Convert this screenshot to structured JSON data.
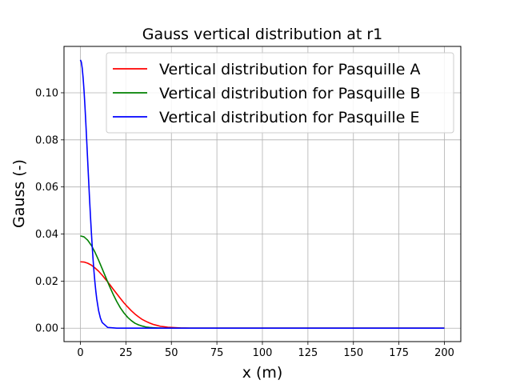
{
  "chart_data": {
    "type": "line",
    "title": "Gauss vertical distribution at r1",
    "xlabel": "x (m)",
    "ylabel": "Gauss (-)",
    "xlim": [
      -9,
      209
    ],
    "ylim": [
      -0.0057,
      0.1197
    ],
    "xticks": [
      0,
      25,
      50,
      75,
      100,
      125,
      150,
      175,
      200
    ],
    "yticks": [
      0.0,
      0.02,
      0.04,
      0.06,
      0.08,
      0.1
    ],
    "xtick_labels": [
      "0",
      "25",
      "50",
      "75",
      "100",
      "125",
      "150",
      "175",
      "200"
    ],
    "ytick_labels": [
      "0.00",
      "0.02",
      "0.04",
      "0.06",
      "0.08",
      "0.10"
    ],
    "grid": true,
    "legend_position": "top-right",
    "series": [
      {
        "name": "Vertical distribution for Pasquille A",
        "color": "#ff0000",
        "x": [
          0,
          2,
          4,
          6,
          8,
          10,
          12,
          14,
          16,
          18,
          20,
          22,
          24,
          26,
          28,
          30,
          32,
          34,
          36,
          38,
          40,
          42,
          44,
          46,
          48,
          50,
          55,
          60,
          70,
          80,
          100,
          125,
          150,
          175,
          200
        ],
        "y": [
          0.0282,
          0.0281,
          0.0276,
          0.0268,
          0.0256,
          0.0242,
          0.0225,
          0.0206,
          0.0187,
          0.0166,
          0.0146,
          0.0126,
          0.0107,
          0.009,
          0.0074,
          0.006,
          0.0048,
          0.0037,
          0.0029,
          0.0022,
          0.0016,
          0.0012,
          0.0008,
          0.0006,
          0.0004,
          0.0003,
          0.0001,
          0.0,
          0.0,
          0.0,
          0.0,
          0.0,
          0.0,
          0.0,
          0.0
        ]
      },
      {
        "name": "Vertical distribution for Pasquille B",
        "color": "#008000",
        "x": [
          0,
          2,
          4,
          6,
          8,
          10,
          12,
          14,
          16,
          18,
          20,
          22,
          24,
          26,
          28,
          30,
          32,
          34,
          36,
          38,
          40,
          45,
          50,
          60,
          80,
          100,
          125,
          150,
          175,
          200
        ],
        "y": [
          0.0392,
          0.0388,
          0.0374,
          0.0352,
          0.0323,
          0.0289,
          0.0252,
          0.0215,
          0.0178,
          0.0144,
          0.0113,
          0.0086,
          0.0064,
          0.0046,
          0.0032,
          0.0021,
          0.0014,
          0.0009,
          0.0005,
          0.0003,
          0.0002,
          0.0,
          0.0,
          0.0,
          0.0,
          0.0,
          0.0,
          0.0,
          0.0,
          0.0
        ]
      },
      {
        "name": "Vertical distribution for Pasquille E",
        "color": "#0000ff",
        "x": [
          0,
          0.5,
          1,
          1.5,
          2,
          2.5,
          3,
          3.5,
          4,
          4.5,
          5,
          5.5,
          6,
          6.5,
          7,
          7.5,
          8,
          8.5,
          9,
          10,
          11,
          12,
          15,
          20,
          50,
          100,
          150,
          200
        ],
        "y": [
          0.114,
          0.1131,
          0.1105,
          0.1064,
          0.101,
          0.0944,
          0.0871,
          0.0793,
          0.0713,
          0.0633,
          0.0555,
          0.0481,
          0.0412,
          0.0347,
          0.0289,
          0.0238,
          0.0194,
          0.0156,
          0.0124,
          0.0075,
          0.0043,
          0.0024,
          0.0003,
          0.0,
          0.0,
          0.0,
          0.0,
          0.0
        ]
      }
    ]
  }
}
